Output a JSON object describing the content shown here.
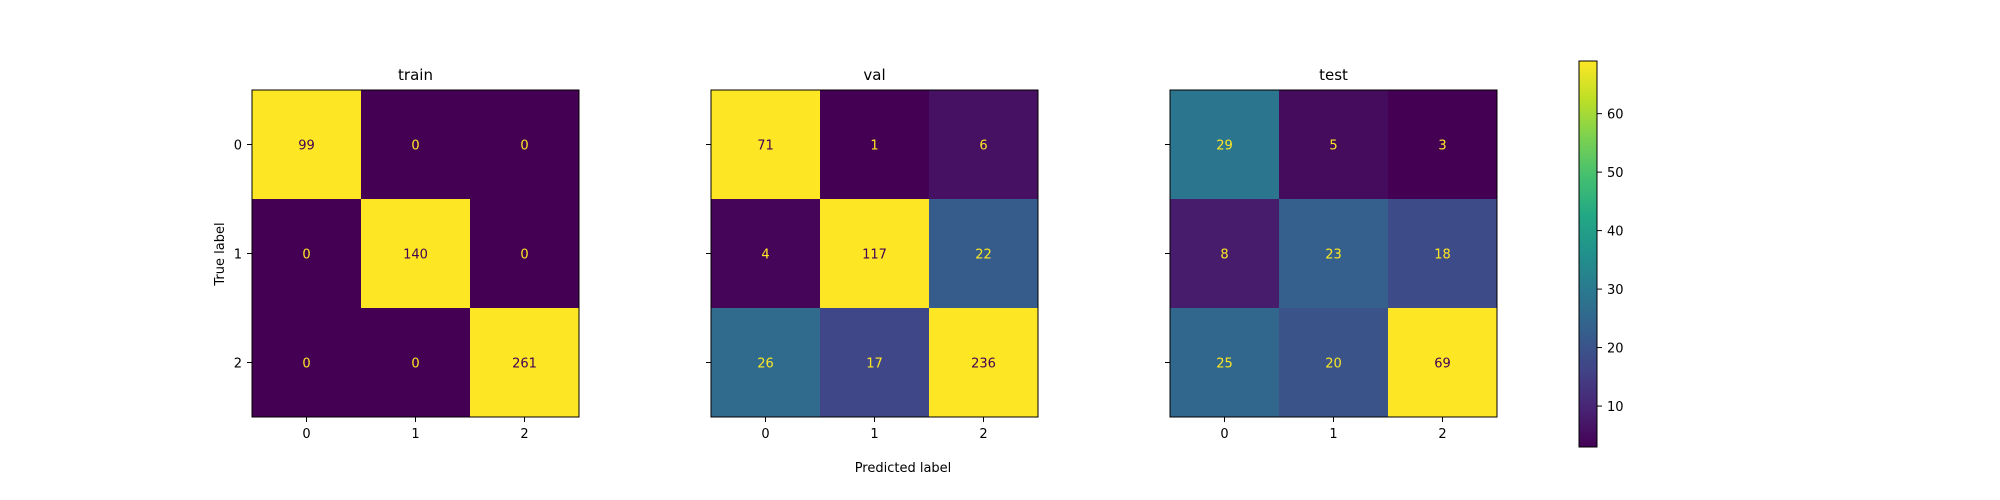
{
  "chart_data": {
    "type": "heatmap",
    "xlabel": "Predicted label",
    "ylabel": "True label",
    "x_tick_labels": [
      "0",
      "1",
      "2"
    ],
    "y_tick_labels": [
      "0",
      "1",
      "2"
    ],
    "panels": [
      {
        "title": "train",
        "matrix": [
          [
            99,
            0,
            0
          ],
          [
            0,
            140,
            0
          ],
          [
            0,
            0,
            261
          ]
        ]
      },
      {
        "title": "val",
        "matrix": [
          [
            71,
            1,
            6
          ],
          [
            4,
            117,
            22
          ],
          [
            26,
            17,
            236
          ]
        ]
      },
      {
        "title": "test",
        "matrix": [
          [
            29,
            5,
            3
          ],
          [
            8,
            23,
            18
          ],
          [
            25,
            20,
            69
          ]
        ]
      }
    ],
    "colorbar": {
      "colormap": "viridis",
      "vmin": 3,
      "vmax": 69,
      "ticks": [
        10,
        20,
        30,
        40,
        50,
        60
      ],
      "tick_labels": [
        "10",
        "20",
        "30",
        "40",
        "50",
        "60"
      ]
    }
  }
}
